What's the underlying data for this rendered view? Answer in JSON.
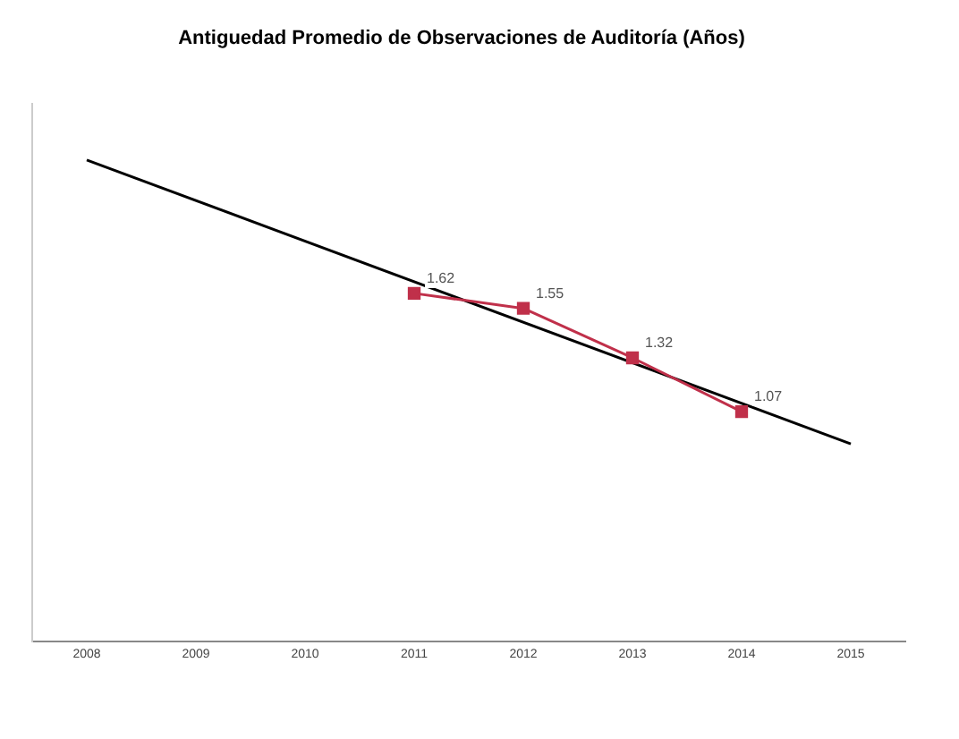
{
  "chart_data": {
    "type": "line",
    "title": "Antiguedad Promedio de Observaciones de Auditoría (Años)",
    "xlim": [
      2007.5,
      2015.5
    ],
    "xticks": [
      2008,
      2009,
      2010,
      2011,
      2012,
      2013,
      2014,
      2015
    ],
    "ylim": [
      0,
      2.5
    ],
    "tick_labels": "x",
    "grid": false,
    "legend": false,
    "series": [
      {
        "x": [
          2011,
          2012,
          2013,
          2014
        ],
        "values": [
          1.62,
          1.55,
          1.32,
          1.07
        ],
        "color": "#c0304a",
        "marker": "square",
        "data_labels": true
      },
      {
        "x": [
          2008,
          2015
        ],
        "values": [
          2.24,
          0.92
        ],
        "color": "#000000",
        "marker": "none"
      }
    ]
  }
}
